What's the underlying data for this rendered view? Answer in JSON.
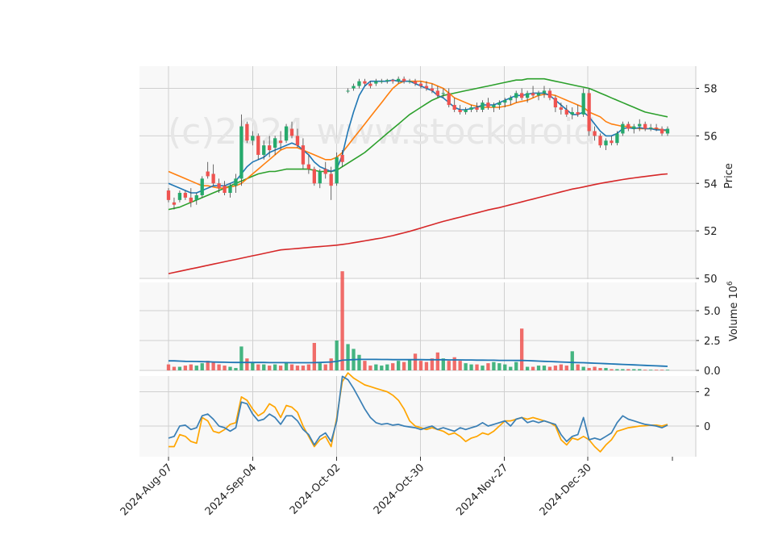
{
  "chart_data": {
    "type": "candlestick",
    "watermark": "(c)2024 www.stockdroid.",
    "colors": {
      "up": "#26a96c",
      "down": "#ef5350",
      "background": "#f8f8f8",
      "grid": "#d0d0d0",
      "ma_fast": "#1f77b4",
      "ma_mid": "#ff7f0e",
      "ma_slow": "#2ca02c",
      "ma_long": "#d62728",
      "vol_ma": "#1f77b4",
      "osc_a": "#3a7fb5",
      "osc_b": "#ffa500"
    },
    "x_tick_labels": [
      "2024-Aug-07",
      "2024-Sep-04",
      "2024-Oct-02",
      "2024-Oct-30",
      "2024-Nov-27",
      "2024-Dec-30"
    ],
    "price_panel": {
      "ylabel": "Price",
      "ylim": [
        50,
        59
      ],
      "yticks": [
        50,
        52,
        54,
        56,
        58
      ],
      "ohlc": [
        [
          53.7,
          53.8,
          53.2,
          53.3
        ],
        [
          53.2,
          53.4,
          52.9,
          53.1
        ],
        [
          53.3,
          53.7,
          53.2,
          53.6
        ],
        [
          53.6,
          53.7,
          53.3,
          53.4
        ],
        [
          53.4,
          53.8,
          53.0,
          53.2
        ],
        [
          53.3,
          53.6,
          53.1,
          53.5
        ],
        [
          53.5,
          54.3,
          53.4,
          54.2
        ],
        [
          54.5,
          54.9,
          54.2,
          54.3
        ],
        [
          54.4,
          54.8,
          53.9,
          54.0
        ],
        [
          54.0,
          54.2,
          53.6,
          53.8
        ],
        [
          53.9,
          54.1,
          53.5,
          53.6
        ],
        [
          53.6,
          54.0,
          53.4,
          53.9
        ],
        [
          53.9,
          54.4,
          53.6,
          54.2
        ],
        [
          54.2,
          56.9,
          53.9,
          56.4
        ],
        [
          56.5,
          56.6,
          55.7,
          55.8
        ],
        [
          55.8,
          56.2,
          55.6,
          56.0
        ],
        [
          56.0,
          56.1,
          55.0,
          55.2
        ],
        [
          55.2,
          55.8,
          55.0,
          55.6
        ],
        [
          55.6,
          56.0,
          55.1,
          55.4
        ],
        [
          55.5,
          56.0,
          55.2,
          55.9
        ],
        [
          55.8,
          56.2,
          55.4,
          55.7
        ],
        [
          55.8,
          56.5,
          55.7,
          56.4
        ],
        [
          56.3,
          56.6,
          55.9,
          56.0
        ],
        [
          56.0,
          56.3,
          55.5,
          55.6
        ],
        [
          55.6,
          55.9,
          54.6,
          54.8
        ],
        [
          54.8,
          55.2,
          54.4,
          54.6
        ],
        [
          54.6,
          54.7,
          53.9,
          54.0
        ],
        [
          54.0,
          54.6,
          53.8,
          54.5
        ],
        [
          54.6,
          54.9,
          54.2,
          54.4
        ],
        [
          54.4,
          54.7,
          53.3,
          53.9
        ],
        [
          54.0,
          55.3,
          53.9,
          55.1
        ],
        [
          55.2,
          55.4,
          54.7,
          54.9
        ],
        [
          57.9,
          58.0,
          57.8,
          57.9
        ],
        [
          58.0,
          58.2,
          57.9,
          58.1
        ],
        [
          58.1,
          58.4,
          58.0,
          58.3
        ],
        [
          58.3,
          58.4,
          58.1,
          58.2
        ],
        [
          58.2,
          58.3,
          58.0,
          58.1
        ],
        [
          58.2,
          58.4,
          58.1,
          58.3
        ],
        [
          58.3,
          58.4,
          58.2,
          58.3
        ],
        [
          58.3,
          58.4,
          58.2,
          58.35
        ],
        [
          58.35,
          58.4,
          58.2,
          58.3
        ],
        [
          58.3,
          58.5,
          58.2,
          58.4
        ],
        [
          58.4,
          58.5,
          58.2,
          58.3
        ],
        [
          58.3,
          58.4,
          58.2,
          58.3
        ],
        [
          58.3,
          58.4,
          58.1,
          58.2
        ],
        [
          58.2,
          58.3,
          58.0,
          58.1
        ],
        [
          58.1,
          58.3,
          57.9,
          58.0
        ],
        [
          58.0,
          58.2,
          57.8,
          57.9
        ],
        [
          57.9,
          58.1,
          57.6,
          57.7
        ],
        [
          57.8,
          58.0,
          57.6,
          57.8
        ],
        [
          57.8,
          58.0,
          57.2,
          57.3
        ],
        [
          57.3,
          57.6,
          57.0,
          57.1
        ],
        [
          57.1,
          57.3,
          56.9,
          57.0
        ],
        [
          57.0,
          57.2,
          56.9,
          57.1
        ],
        [
          57.1,
          57.3,
          57.0,
          57.2
        ],
        [
          57.2,
          57.4,
          57.0,
          57.1
        ],
        [
          57.1,
          57.5,
          57.0,
          57.4
        ],
        [
          57.4,
          57.6,
          57.1,
          57.2
        ],
        [
          57.2,
          57.4,
          57.0,
          57.3
        ],
        [
          57.3,
          57.5,
          57.1,
          57.4
        ],
        [
          57.4,
          57.6,
          57.2,
          57.5
        ],
        [
          57.5,
          57.7,
          57.3,
          57.6
        ],
        [
          57.6,
          57.9,
          57.4,
          57.8
        ],
        [
          57.8,
          58.0,
          57.5,
          57.6
        ],
        [
          57.6,
          57.9,
          57.4,
          57.8
        ],
        [
          57.8,
          58.1,
          57.6,
          57.7
        ],
        [
          57.7,
          57.9,
          57.5,
          57.8
        ],
        [
          57.8,
          58.1,
          57.6,
          57.9
        ],
        [
          57.9,
          58.0,
          57.5,
          57.6
        ],
        [
          57.6,
          57.7,
          57.0,
          57.2
        ],
        [
          57.2,
          57.4,
          56.9,
          57.1
        ],
        [
          57.1,
          57.3,
          56.8,
          56.9
        ],
        [
          56.9,
          57.2,
          56.7,
          57.0
        ],
        [
          57.0,
          57.3,
          56.8,
          56.9
        ],
        [
          56.9,
          58.0,
          56.8,
          57.8
        ],
        [
          57.8,
          58.0,
          56.0,
          56.2
        ],
        [
          56.2,
          56.4,
          55.8,
          56.0
        ],
        [
          56.0,
          56.1,
          55.5,
          55.6
        ],
        [
          55.6,
          55.9,
          55.4,
          55.8
        ],
        [
          55.8,
          56.0,
          55.6,
          55.7
        ],
        [
          55.7,
          56.2,
          55.6,
          56.1
        ],
        [
          56.1,
          56.6,
          56.0,
          56.5
        ],
        [
          56.5,
          56.6,
          56.2,
          56.3
        ],
        [
          56.3,
          56.5,
          56.1,
          56.4
        ],
        [
          56.4,
          56.7,
          56.2,
          56.5
        ],
        [
          56.5,
          56.6,
          56.2,
          56.3
        ],
        [
          56.3,
          56.5,
          56.2,
          56.35
        ],
        [
          56.35,
          56.5,
          56.2,
          56.3
        ],
        [
          56.3,
          56.4,
          56.0,
          56.1
        ],
        [
          56.1,
          56.4,
          56.0,
          56.3
        ]
      ],
      "ma_fast": [
        54.0,
        53.9,
        53.8,
        53.7,
        53.6,
        53.6,
        53.7,
        53.8,
        53.9,
        53.9,
        53.9,
        54.0,
        54.1,
        54.4,
        54.7,
        54.9,
        55.0,
        55.1,
        55.3,
        55.4,
        55.5,
        55.6,
        55.7,
        55.6,
        55.4,
        55.2,
        54.9,
        54.7,
        54.6,
        54.5,
        54.6,
        55.2,
        56.2,
        57.0,
        57.7,
        58.1,
        58.3,
        58.3,
        58.3,
        58.3,
        58.35,
        58.3,
        58.3,
        58.3,
        58.2,
        58.1,
        58.0,
        57.9,
        57.7,
        57.6,
        57.4,
        57.2,
        57.1,
        57.1,
        57.15,
        57.2,
        57.3,
        57.3,
        57.3,
        57.4,
        57.5,
        57.6,
        57.7,
        57.7,
        57.75,
        57.8,
        57.8,
        57.8,
        57.7,
        57.5,
        57.3,
        57.1,
        56.9,
        56.9,
        57.0,
        56.8,
        56.5,
        56.2,
        56.0,
        56.0,
        56.1,
        56.3,
        56.35,
        56.3,
        56.35,
        56.3,
        56.3,
        56.25,
        56.25,
        56.25
      ],
      "ma_mid": [
        54.5,
        54.4,
        54.3,
        54.2,
        54.1,
        54.0,
        53.9,
        53.9,
        53.85,
        53.8,
        53.8,
        53.85,
        53.9,
        54.0,
        54.2,
        54.4,
        54.6,
        54.8,
        55.0,
        55.2,
        55.4,
        55.5,
        55.5,
        55.5,
        55.4,
        55.3,
        55.2,
        55.1,
        55.0,
        55.0,
        55.1,
        55.3,
        55.6,
        55.9,
        56.2,
        56.5,
        56.8,
        57.1,
        57.4,
        57.7,
        58.0,
        58.2,
        58.3,
        58.3,
        58.3,
        58.3,
        58.25,
        58.2,
        58.1,
        58.0,
        57.8,
        57.6,
        57.5,
        57.4,
        57.3,
        57.25,
        57.2,
        57.2,
        57.2,
        57.2,
        57.25,
        57.3,
        57.4,
        57.45,
        57.5,
        57.6,
        57.7,
        57.75,
        57.75,
        57.7,
        57.6,
        57.5,
        57.4,
        57.3,
        57.2,
        57.0,
        56.9,
        56.8,
        56.6,
        56.5,
        56.45,
        56.4,
        56.4,
        56.35,
        56.3,
        56.3,
        56.3,
        56.3,
        56.25,
        56.2
      ],
      "ma_slow": [
        52.9,
        52.95,
        53.0,
        53.1,
        53.2,
        53.3,
        53.4,
        53.5,
        53.6,
        53.7,
        53.8,
        53.9,
        54.0,
        54.1,
        54.2,
        54.3,
        54.4,
        54.45,
        54.5,
        54.5,
        54.55,
        54.6,
        54.6,
        54.6,
        54.6,
        54.6,
        54.55,
        54.5,
        54.5,
        54.5,
        54.55,
        54.7,
        54.85,
        55.0,
        55.15,
        55.3,
        55.5,
        55.7,
        55.9,
        56.1,
        56.3,
        56.5,
        56.7,
        56.9,
        57.05,
        57.2,
        57.35,
        57.5,
        57.6,
        57.7,
        57.75,
        57.8,
        57.85,
        57.9,
        57.95,
        58.0,
        58.05,
        58.1,
        58.15,
        58.2,
        58.25,
        58.3,
        58.35,
        58.35,
        58.4,
        58.4,
        58.4,
        58.4,
        58.35,
        58.3,
        58.25,
        58.2,
        58.15,
        58.1,
        58.05,
        58.0,
        57.9,
        57.8,
        57.7,
        57.6,
        57.5,
        57.4,
        57.3,
        57.2,
        57.1,
        57.0,
        56.95,
        56.9,
        56.85,
        56.8
      ],
      "ma_long": [
        50.2,
        50.25,
        50.3,
        50.35,
        50.4,
        50.45,
        50.5,
        50.55,
        50.6,
        50.65,
        50.7,
        50.75,
        50.8,
        50.85,
        50.9,
        50.95,
        51.0,
        51.05,
        51.1,
        51.15,
        51.2,
        51.22,
        51.24,
        51.26,
        51.28,
        51.3,
        51.32,
        51.34,
        51.36,
        51.38,
        51.4,
        51.43,
        51.46,
        51.5,
        51.54,
        51.58,
        51.62,
        51.66,
        51.7,
        51.75,
        51.8,
        51.86,
        51.92,
        51.98,
        52.05,
        52.12,
        52.19,
        52.26,
        52.33,
        52.4,
        52.46,
        52.52,
        52.58,
        52.64,
        52.7,
        52.76,
        52.82,
        52.88,
        52.93,
        52.98,
        53.04,
        53.1,
        53.16,
        53.22,
        53.28,
        53.34,
        53.4,
        53.46,
        53.52,
        53.58,
        53.64,
        53.7,
        53.76,
        53.8,
        53.85,
        53.9,
        53.95,
        54.0,
        54.04,
        54.08,
        54.12,
        54.16,
        54.2,
        54.23,
        54.26,
        54.29,
        54.32,
        54.35,
        54.38,
        54.4
      ]
    },
    "volume_panel": {
      "ylabel": "Volume",
      "yunit_base": "10",
      "yunit_exp": "6",
      "ylim": [
        0,
        6.5
      ],
      "yticks": [
        0.0,
        2.5,
        5.0
      ],
      "ytick_labels": [
        "0.0",
        "2.5",
        "5.0"
      ],
      "values": [
        0.5,
        0.3,
        0.3,
        0.4,
        0.5,
        0.4,
        0.6,
        0.8,
        0.7,
        0.5,
        0.4,
        0.3,
        0.2,
        2.0,
        1.0,
        0.7,
        0.5,
        0.5,
        0.4,
        0.5,
        0.4,
        0.7,
        0.5,
        0.4,
        0.4,
        0.5,
        2.3,
        0.6,
        0.5,
        1.0,
        2.5,
        8.3,
        2.2,
        1.8,
        1.3,
        0.8,
        0.4,
        0.5,
        0.4,
        0.5,
        0.6,
        0.8,
        0.7,
        0.9,
        1.4,
        0.8,
        0.7,
        1.0,
        1.5,
        1.0,
        0.8,
        1.1,
        0.8,
        0.6,
        0.5,
        0.5,
        0.4,
        0.6,
        0.7,
        0.6,
        0.5,
        0.3,
        0.7,
        3.5,
        0.3,
        0.3,
        0.4,
        0.4,
        0.3,
        0.4,
        0.5,
        0.4,
        1.6,
        0.5,
        0.3,
        0.2,
        0.3,
        0.2,
        0.2,
        0.1,
        0.1,
        0.1,
        0.1,
        0.1,
        0.1,
        0.05,
        0.05,
        0.05,
        0.05,
        0.05
      ],
      "ma": [
        0.8,
        0.8,
        0.78,
        0.76,
        0.75,
        0.74,
        0.73,
        0.72,
        0.7,
        0.69,
        0.68,
        0.67,
        0.66,
        0.66,
        0.66,
        0.66,
        0.66,
        0.66,
        0.65,
        0.65,
        0.65,
        0.65,
        0.64,
        0.64,
        0.64,
        0.64,
        0.65,
        0.66,
        0.68,
        0.7,
        0.75,
        0.85,
        0.88,
        0.9,
        0.92,
        0.92,
        0.92,
        0.92,
        0.91,
        0.91,
        0.9,
        0.9,
        0.9,
        0.9,
        0.9,
        0.9,
        0.89,
        0.89,
        0.89,
        0.89,
        0.88,
        0.88,
        0.88,
        0.87,
        0.87,
        0.86,
        0.86,
        0.85,
        0.85,
        0.84,
        0.84,
        0.84,
        0.83,
        0.83,
        0.82,
        0.8,
        0.78,
        0.76,
        0.74,
        0.72,
        0.7,
        0.68,
        0.66,
        0.65,
        0.64,
        0.62,
        0.6,
        0.58,
        0.56,
        0.54,
        0.52,
        0.5,
        0.48,
        0.46,
        0.44,
        0.42,
        0.4,
        0.38,
        0.36,
        0.34
      ]
    },
    "oscillator_panel": {
      "ylim": [
        -1.8,
        2.6
      ],
      "yticks": [
        0,
        2
      ],
      "series_a": [
        -0.7,
        -0.6,
        0.0,
        0.05,
        -0.2,
        -0.1,
        0.6,
        0.7,
        0.4,
        0.0,
        -0.1,
        -0.3,
        -0.1,
        1.4,
        1.3,
        0.7,
        0.3,
        0.4,
        0.7,
        0.5,
        0.1,
        0.6,
        0.6,
        0.3,
        -0.2,
        -0.5,
        -1.1,
        -0.6,
        -0.4,
        -0.9,
        0.3,
        2.9,
        2.7,
        2.2,
        1.6,
        1.0,
        0.5,
        0.2,
        0.1,
        0.15,
        0.05,
        0.1,
        0.0,
        -0.05,
        -0.1,
        -0.2,
        -0.1,
        0.0,
        -0.2,
        -0.1,
        -0.2,
        -0.3,
        -0.1,
        -0.2,
        -0.1,
        0.0,
        0.2,
        0.0,
        0.1,
        0.2,
        0.3,
        0.0,
        0.4,
        0.5,
        0.2,
        0.3,
        0.2,
        0.3,
        0.2,
        0.1,
        -0.5,
        -0.9,
        -0.6,
        -0.5,
        0.5,
        -0.8,
        -0.7,
        -0.8,
        -0.6,
        -0.4,
        0.2,
        0.6,
        0.4,
        0.3,
        0.2,
        0.1,
        0.05,
        0.0,
        -0.1,
        0.05
      ],
      "series_b": [
        -1.2,
        -1.2,
        -0.5,
        -0.6,
        -0.9,
        -1.0,
        0.5,
        0.3,
        -0.3,
        -0.4,
        -0.2,
        0.1,
        0.2,
        1.7,
        1.5,
        1.0,
        0.6,
        0.8,
        1.3,
        1.1,
        0.5,
        1.2,
        1.1,
        0.8,
        0.0,
        -0.6,
        -1.2,
        -0.8,
        -0.6,
        -1.2,
        0.5,
        2.6,
        3.1,
        2.8,
        2.6,
        2.4,
        2.3,
        2.2,
        2.1,
        2.0,
        1.8,
        1.5,
        1.0,
        0.3,
        0.0,
        -0.1,
        -0.2,
        -0.1,
        -0.2,
        -0.3,
        -0.5,
        -0.4,
        -0.6,
        -0.9,
        -0.7,
        -0.6,
        -0.4,
        -0.5,
        -0.3,
        0.0,
        0.3,
        0.3,
        0.4,
        0.5,
        0.4,
        0.5,
        0.4,
        0.3,
        0.2,
        0.0,
        -0.8,
        -1.1,
        -0.7,
        -0.8,
        -0.6,
        -0.8,
        -1.2,
        -1.5,
        -1.1,
        -0.8,
        -0.3,
        -0.2,
        -0.1,
        -0.05,
        0.0,
        0.02,
        0.05,
        0.05,
        0.0,
        0.1
      ]
    }
  }
}
